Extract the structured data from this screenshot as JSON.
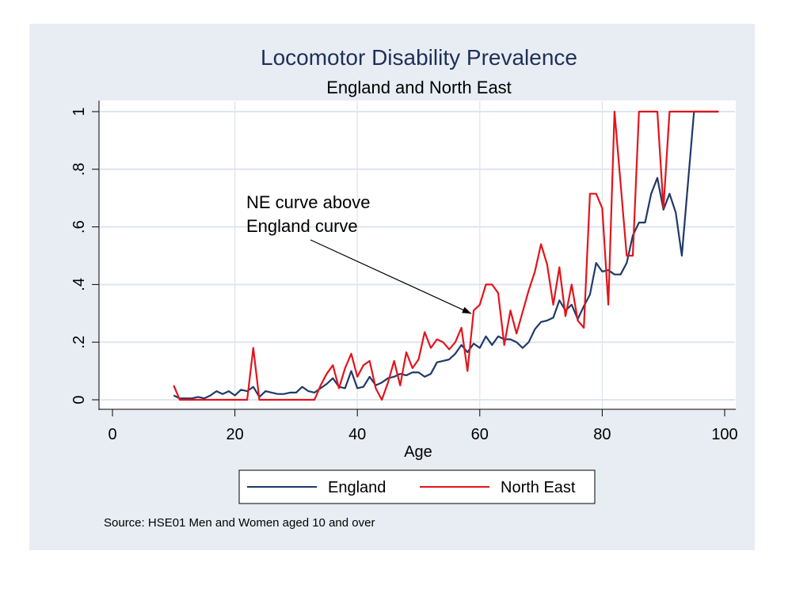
{
  "chart_data": {
    "type": "line",
    "title": "Locomotor Disability Prevalence",
    "subtitle": "England and North East",
    "xlabel": "Age",
    "ylabel": "",
    "xlim": [
      0,
      100
    ],
    "ylim": [
      0,
      1
    ],
    "xticks": [
      0,
      20,
      40,
      60,
      80,
      100
    ],
    "xtick_labels": [
      "0",
      "20",
      "40",
      "60",
      "80",
      "100"
    ],
    "yticks": [
      0,
      0.2,
      0.4,
      0.6,
      0.8,
      1
    ],
    "ytick_labels": [
      "0",
      ".2",
      ".4",
      ".6",
      ".8",
      "1"
    ],
    "grid": true,
    "legend_position": "bottom",
    "series": [
      {
        "name": "England",
        "color": "#1f3a68",
        "x": [
          10,
          11,
          12,
          13,
          14,
          15,
          16,
          17,
          18,
          19,
          20,
          21,
          22,
          23,
          24,
          25,
          26,
          27,
          28,
          29,
          30,
          31,
          32,
          33,
          34,
          35,
          36,
          37,
          38,
          39,
          40,
          41,
          42,
          43,
          44,
          45,
          46,
          47,
          48,
          49,
          50,
          51,
          52,
          53,
          54,
          55,
          56,
          57,
          58,
          59,
          60,
          61,
          62,
          63,
          64,
          65,
          66,
          67,
          68,
          69,
          70,
          71,
          72,
          73,
          74,
          75,
          76,
          77,
          78,
          79,
          80,
          81,
          82,
          83,
          84,
          85,
          86,
          87,
          88,
          89,
          90,
          91,
          92,
          93,
          95,
          99
        ],
        "y": [
          0.015,
          0.005,
          0.005,
          0.005,
          0.01,
          0.005,
          0.015,
          0.03,
          0.02,
          0.03,
          0.015,
          0.035,
          0.03,
          0.045,
          0.01,
          0.03,
          0.025,
          0.02,
          0.02,
          0.025,
          0.025,
          0.045,
          0.03,
          0.025,
          0.04,
          0.055,
          0.075,
          0.045,
          0.04,
          0.1,
          0.04,
          0.045,
          0.08,
          0.05,
          0.06,
          0.075,
          0.08,
          0.09,
          0.085,
          0.095,
          0.095,
          0.08,
          0.09,
          0.13,
          0.135,
          0.14,
          0.16,
          0.19,
          0.165,
          0.195,
          0.18,
          0.22,
          0.19,
          0.22,
          0.21,
          0.21,
          0.2,
          0.18,
          0.2,
          0.245,
          0.27,
          0.275,
          0.285,
          0.345,
          0.31,
          0.33,
          0.28,
          0.325,
          0.365,
          0.475,
          0.445,
          0.45,
          0.435,
          0.435,
          0.475,
          0.57,
          0.615,
          0.615,
          0.715,
          0.77,
          0.66,
          0.715,
          0.65,
          0.5,
          1.0,
          1.0
        ]
      },
      {
        "name": "North East",
        "color": "#e3141b",
        "x": [
          10,
          11,
          12,
          13,
          14,
          15,
          16,
          17,
          18,
          19,
          20,
          21,
          22,
          23,
          24,
          25,
          26,
          27,
          28,
          29,
          30,
          31,
          32,
          33,
          34,
          35,
          36,
          37,
          38,
          39,
          40,
          41,
          42,
          43,
          44,
          45,
          46,
          47,
          48,
          49,
          50,
          51,
          52,
          53,
          54,
          55,
          56,
          57,
          58,
          59,
          60,
          61,
          62,
          63,
          64,
          65,
          66,
          67,
          68,
          69,
          70,
          71,
          72,
          73,
          74,
          75,
          76,
          77,
          78,
          79,
          80,
          81,
          82,
          83,
          84,
          85,
          86,
          87,
          88,
          89,
          90,
          91,
          92,
          93,
          94,
          95,
          96,
          97,
          98,
          99
        ],
        "y": [
          0.05,
          0,
          0,
          0,
          0,
          0,
          0,
          0,
          0,
          0,
          0,
          0,
          0,
          0.18,
          0,
          0,
          0,
          0,
          0,
          0,
          0,
          0,
          0,
          0,
          0.05,
          0.09,
          0.12,
          0.04,
          0.11,
          0.16,
          0.08,
          0.12,
          0.135,
          0.04,
          0,
          0.06,
          0.135,
          0.05,
          0.165,
          0.11,
          0.14,
          0.235,
          0.18,
          0.21,
          0.2,
          0.175,
          0.2,
          0.25,
          0.1,
          0.31,
          0.33,
          0.4,
          0.4,
          0.37,
          0.19,
          0.31,
          0.23,
          0.305,
          0.38,
          0.445,
          0.54,
          0.47,
          0.33,
          0.46,
          0.29,
          0.4,
          0.275,
          0.25,
          0.715,
          0.715,
          0.665,
          0.33,
          1.0,
          0.75,
          0.5,
          0.5,
          1.0,
          1.0,
          1.0,
          1.0,
          0.665,
          1.0,
          1.0,
          1.0,
          1.0,
          1.0,
          1.0,
          1.0,
          1.0,
          1.0
        ]
      }
    ],
    "annotation": {
      "lines": [
        "NE curve above",
        "England curve"
      ],
      "arrow_to": {
        "x": 59,
        "y": 0.31
      }
    },
    "source": "Source: HSE01 Men and Women aged 10 and over"
  },
  "colors": {
    "background": "#e8edf4",
    "plot_area": "#ffffff",
    "gridline": "#dde5f0",
    "title": "#1f2f57"
  }
}
